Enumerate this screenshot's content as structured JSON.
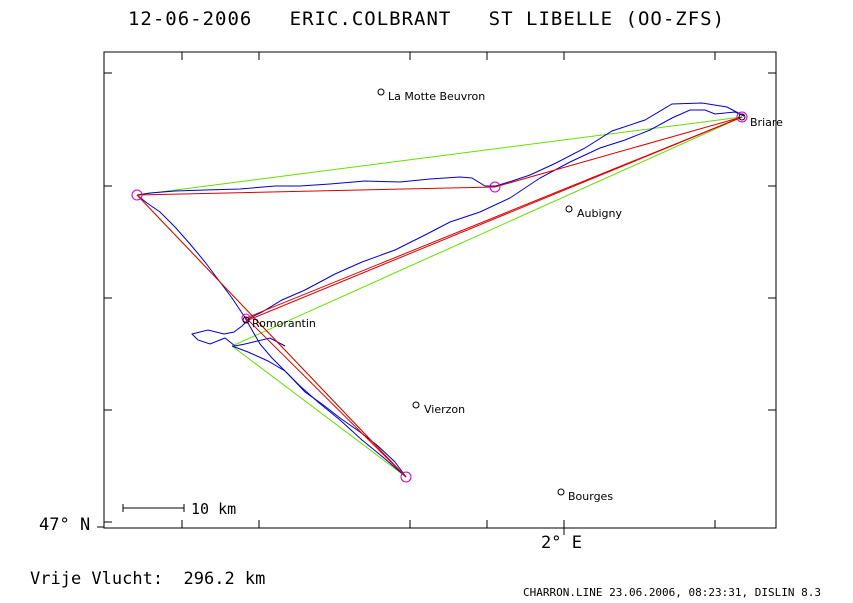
{
  "header": {
    "title": "12-06-2006   ERIC.COLBRANT   ST LIBELLE (OO-ZFS)"
  },
  "axes": {
    "y_label": "47° N",
    "x_label": "2° E"
  },
  "scale_bar": {
    "label": "10 km"
  },
  "towns": [
    {
      "name": "La Motte Beuvron"
    },
    {
      "name": "Briare"
    },
    {
      "name": "Aubigny"
    },
    {
      "name": "Romorantin"
    },
    {
      "name": "Vierzon"
    },
    {
      "name": "Bourges"
    }
  ],
  "footer": {
    "distance_text": "Vrije Vlucht:  296.2 km",
    "meta_text": "CHARRON.LINE 23.06.2006, 08:23:31, DISLIN 8.3"
  },
  "colors": {
    "track": "#0000cc",
    "task_line": "#dd0000",
    "triangle_line": "#66dd00",
    "turnpoint": "#cc00cc",
    "frame": "#000000"
  }
}
